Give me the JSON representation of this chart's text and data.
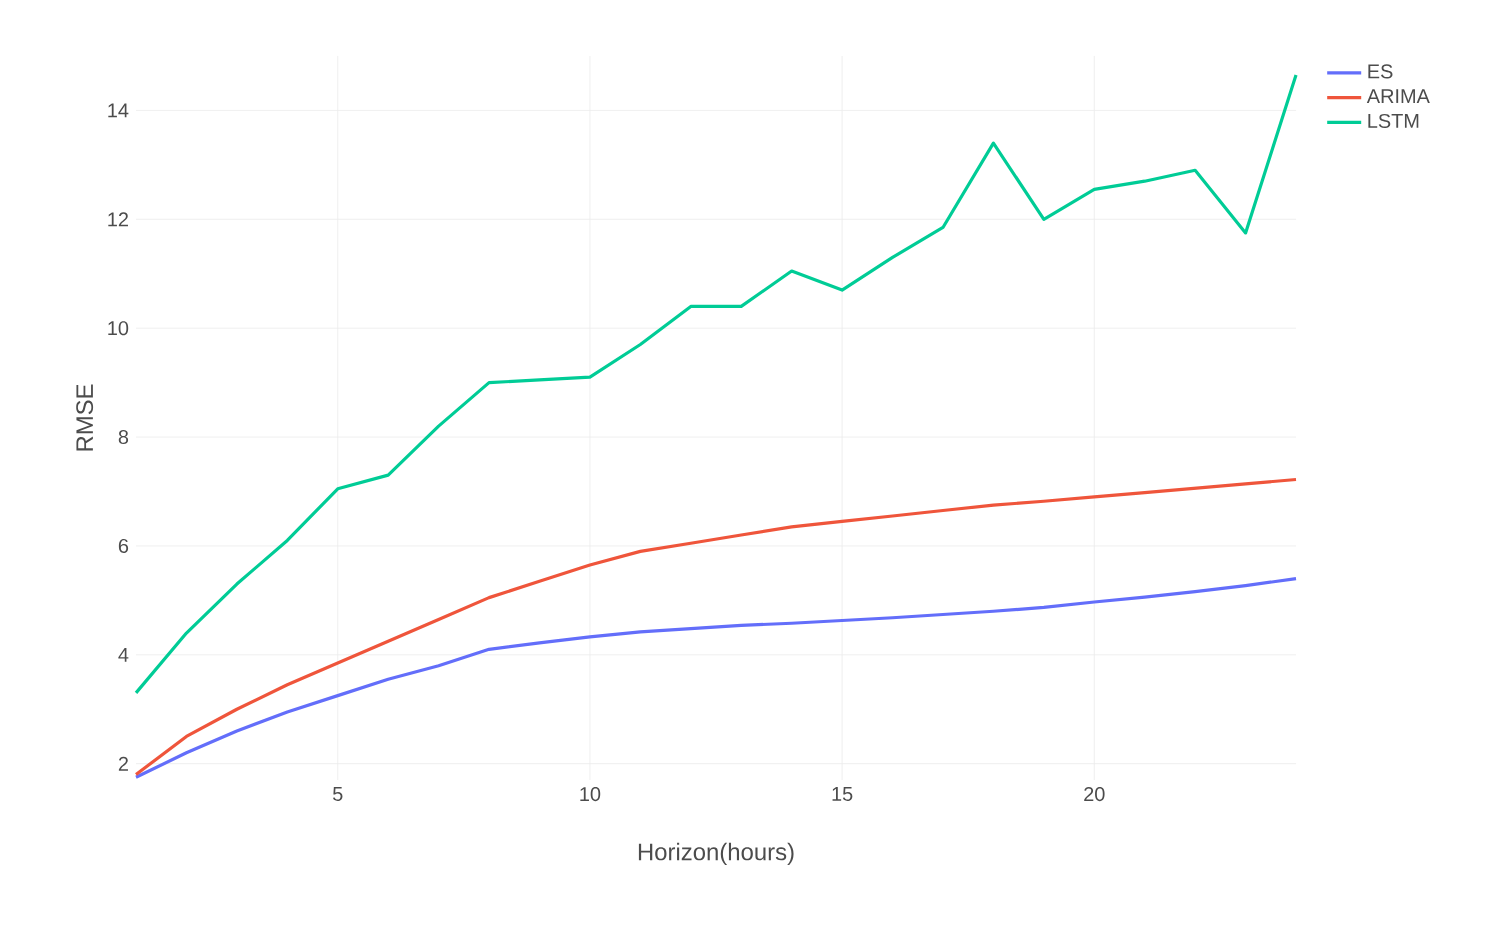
{
  "chart_data": {
    "type": "line",
    "xlabel": "Horizon(hours)",
    "ylabel": "RMSE",
    "x": [
      1,
      2,
      3,
      4,
      5,
      6,
      7,
      8,
      9,
      10,
      11,
      12,
      13,
      14,
      15,
      16,
      17,
      18,
      19,
      20,
      21,
      22,
      23,
      24
    ],
    "series": [
      {
        "name": "ES",
        "color": "#636efa",
        "values": [
          1.75,
          2.2,
          2.6,
          2.95,
          3.25,
          3.55,
          3.8,
          4.1,
          4.22,
          4.33,
          4.42,
          4.48,
          4.54,
          4.58,
          4.63,
          4.68,
          4.74,
          4.8,
          4.87,
          4.97,
          5.06,
          5.16,
          5.27,
          5.4
        ]
      },
      {
        "name": "ARIMA",
        "color": "#ef553b",
        "values": [
          1.8,
          2.5,
          3.0,
          3.45,
          3.85,
          4.25,
          4.65,
          5.05,
          5.35,
          5.65,
          5.9,
          6.05,
          6.2,
          6.35,
          6.45,
          6.55,
          6.65,
          6.75,
          6.82,
          6.9,
          6.98,
          7.06,
          7.14,
          7.22
        ]
      },
      {
        "name": "LSTM",
        "color": "#00cc96",
        "values": [
          3.3,
          4.4,
          5.3,
          6.1,
          7.05,
          7.3,
          8.2,
          9.0,
          9.05,
          9.1,
          9.7,
          10.4,
          10.4,
          11.05,
          10.7,
          11.3,
          11.85,
          13.4,
          12.0,
          12.55,
          12.7,
          12.9,
          11.75,
          14.65
        ]
      }
    ],
    "xlim": [
      1,
      24
    ],
    "ylim": [
      1.7,
      15.0
    ],
    "xticks": [
      5,
      10,
      15,
      20
    ],
    "yticks": [
      2,
      4,
      6,
      8,
      10,
      12,
      14
    ],
    "grid": true,
    "legend": "top right",
    "marker": "none",
    "line_style": "solid"
  }
}
